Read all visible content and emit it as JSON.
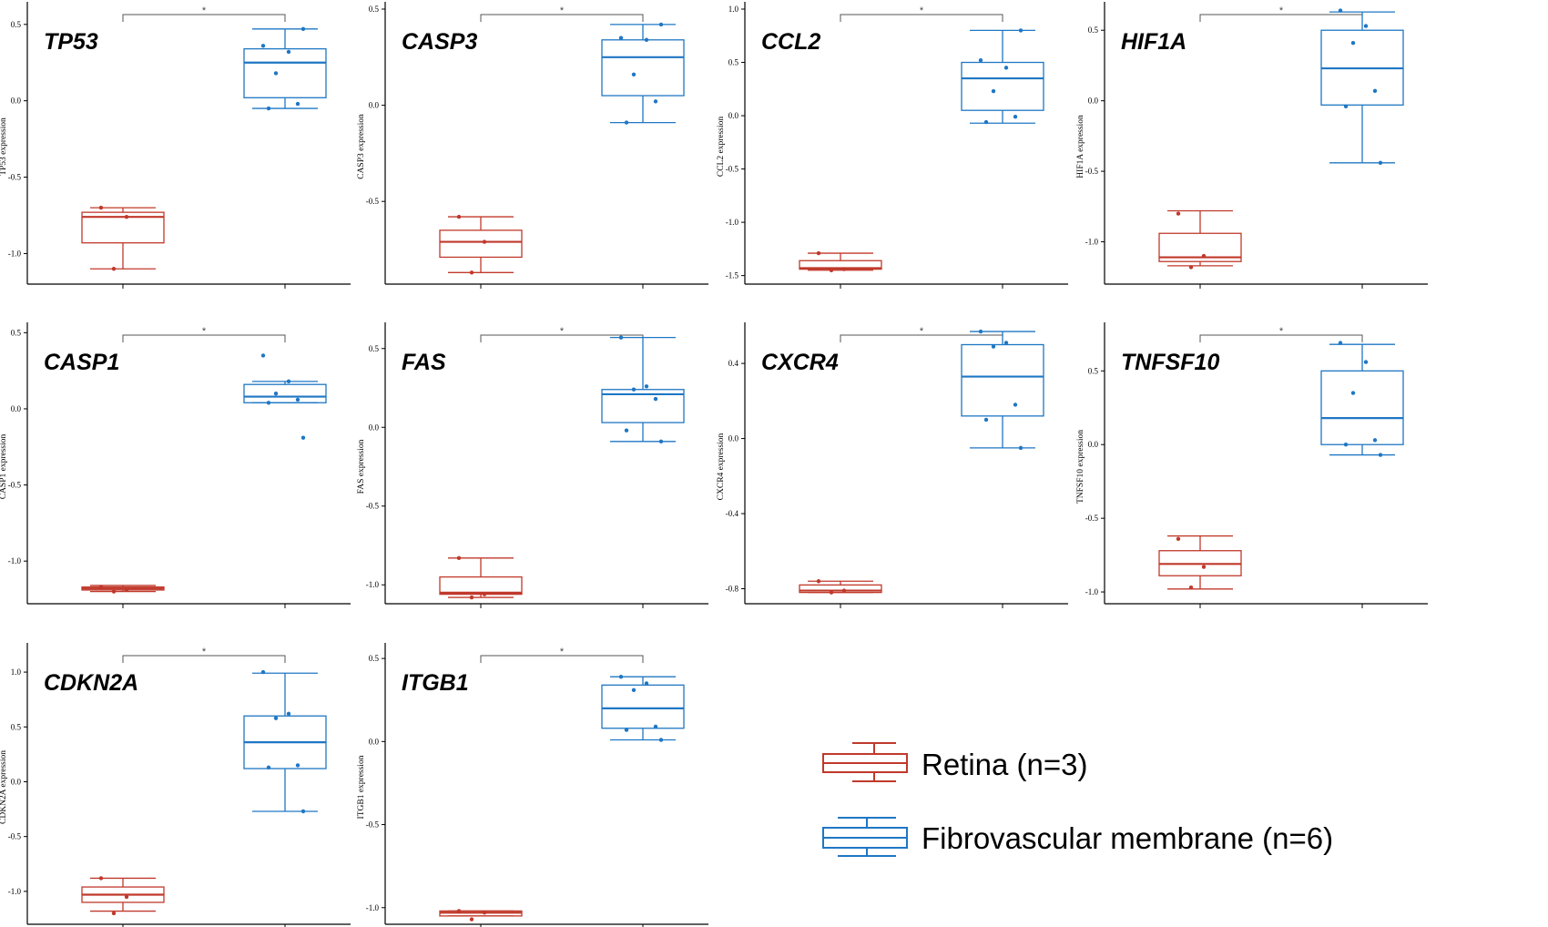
{
  "figure": {
    "title": ""
  },
  "colors": {
    "retina": "#C0392B",
    "fvm": "#1F77C4",
    "axis": "#000000",
    "bracket": "#555555"
  },
  "legend": [
    {
      "label": "Retina (n=3)",
      "series": "retina"
    },
    {
      "label": "Fibrovascular membrane (n=6)",
      "series": "fvm"
    }
  ],
  "chart_data": [
    {
      "type": "box",
      "title": "TP53",
      "ylabel": "TP53 expression",
      "ylim": [
        -1.2,
        0.6
      ],
      "yticks": [
        -1.0,
        -0.5,
        0.0,
        0.5
      ],
      "tick_labels": [
        "-1.0",
        "-0.5",
        "0.0",
        "0.5"
      ],
      "significance": "*",
      "series": [
        {
          "name": "Retina",
          "color_key": "retina",
          "whisker_low": -1.1,
          "q1": -0.93,
          "median": -0.76,
          "q3": -0.73,
          "whisker_high": -0.7,
          "points": [
            -0.7,
            -0.76,
            -1.1
          ]
        },
        {
          "name": "Fibrovascular membrane",
          "color_key": "fvm",
          "whisker_low": -0.05,
          "q1": 0.02,
          "median": 0.25,
          "q3": 0.34,
          "whisker_high": 0.47,
          "points": [
            0.36,
            0.32,
            0.18,
            -0.02,
            -0.05,
            0.47
          ]
        }
      ]
    },
    {
      "type": "box",
      "title": "CASP3",
      "ylabel": "CASP3 expression",
      "ylim": [
        -0.93,
        0.5
      ],
      "yticks": [
        -0.5,
        0.0,
        0.5
      ],
      "tick_labels": [
        "-0.5",
        "0.0",
        "0.5"
      ],
      "significance": "*",
      "series": [
        {
          "name": "Retina",
          "color_key": "retina",
          "whisker_low": -0.87,
          "q1": -0.79,
          "median": -0.71,
          "q3": -0.65,
          "whisker_high": -0.58,
          "points": [
            -0.58,
            -0.71,
            -0.87
          ]
        },
        {
          "name": "Fibrovascular membrane",
          "color_key": "fvm",
          "whisker_low": -0.09,
          "q1": 0.05,
          "median": 0.25,
          "q3": 0.34,
          "whisker_high": 0.42,
          "points": [
            0.35,
            0.34,
            0.16,
            0.02,
            -0.09,
            0.42
          ]
        }
      ]
    },
    {
      "type": "box",
      "title": "CCL2",
      "ylabel": "CCL2 expression",
      "ylim": [
        -1.58,
        1.0
      ],
      "yticks": [
        -1.5,
        -1.0,
        -0.5,
        0.0,
        0.5,
        1.0
      ],
      "tick_labels": [
        "-1.5",
        "-1.0",
        "-0.5",
        "0.0",
        "0.5",
        "1.0"
      ],
      "significance": "*",
      "series": [
        {
          "name": "Retina",
          "color_key": "retina",
          "whisker_low": -1.45,
          "q1": -1.44,
          "median": -1.43,
          "q3": -1.36,
          "whisker_high": -1.29,
          "points": [
            -1.29,
            -1.44,
            -1.45
          ]
        },
        {
          "name": "Fibrovascular membrane",
          "color_key": "fvm",
          "whisker_low": -0.07,
          "q1": 0.05,
          "median": 0.35,
          "q3": 0.5,
          "whisker_high": 0.8,
          "points": [
            0.52,
            0.45,
            0.23,
            -0.01,
            -0.06,
            0.8
          ]
        }
      ]
    },
    {
      "type": "box",
      "title": "HIF1A",
      "ylabel": "HIF1A expression",
      "ylim": [
        -1.3,
        0.65
      ],
      "yticks": [
        -1.0,
        -0.5,
        0.0,
        0.5
      ],
      "tick_labels": [
        "-1.0",
        "-0.5",
        "0.0",
        "0.5"
      ],
      "significance": "*",
      "series": [
        {
          "name": "Retina",
          "color_key": "retina",
          "whisker_low": -1.17,
          "q1": -1.14,
          "median": -1.11,
          "q3": -0.94,
          "whisker_high": -0.78,
          "points": [
            -0.8,
            -1.1,
            -1.18
          ]
        },
        {
          "name": "Fibrovascular membrane",
          "color_key": "fvm",
          "whisker_low": -0.44,
          "q1": -0.03,
          "median": 0.23,
          "q3": 0.5,
          "whisker_high": 0.63,
          "points": [
            0.64,
            0.53,
            0.41,
            0.07,
            -0.04,
            -0.44
          ]
        }
      ]
    },
    {
      "type": "box",
      "title": "CASP1",
      "ylabel": "CASP1 expression",
      "ylim": [
        -1.28,
        0.52
      ],
      "yticks": [
        -1.0,
        -0.5,
        0.0,
        0.5
      ],
      "tick_labels": [
        "-1.0",
        "-0.5",
        "0.0",
        "0.5"
      ],
      "significance": "*",
      "series": [
        {
          "name": "Retina",
          "color_key": "retina",
          "whisker_low": -1.2,
          "q1": -1.19,
          "median": -1.18,
          "q3": -1.17,
          "whisker_high": -1.16,
          "points": [
            -1.17,
            -1.19,
            -1.2
          ]
        },
        {
          "name": "Fibrovascular membrane",
          "color_key": "fvm",
          "whisker_low": 0.04,
          "q1": 0.04,
          "median": 0.08,
          "q3": 0.16,
          "whisker_high": 0.18,
          "points": [
            0.35,
            0.18,
            0.1,
            0.06,
            0.04,
            -0.19
          ]
        }
      ]
    },
    {
      "type": "box",
      "title": "FAS",
      "ylabel": "FAS expression",
      "ylim": [
        -1.12,
        0.62
      ],
      "yticks": [
        -1.0,
        -0.5,
        0.0,
        0.5
      ],
      "tick_labels": [
        "-1.0",
        "-0.5",
        "0.0",
        "0.5"
      ],
      "significance": "*",
      "series": [
        {
          "name": "Retina",
          "color_key": "retina",
          "whisker_low": -1.08,
          "q1": -1.06,
          "median": -1.05,
          "q3": -0.95,
          "whisker_high": -0.83,
          "points": [
            -0.83,
            -1.06,
            -1.08
          ]
        },
        {
          "name": "Fibrovascular membrane",
          "color_key": "fvm",
          "whisker_low": -0.09,
          "q1": 0.03,
          "median": 0.21,
          "q3": 0.24,
          "whisker_high": 0.57,
          "points": [
            0.57,
            0.26,
            0.24,
            0.18,
            -0.02,
            -0.09
          ]
        }
      ]
    },
    {
      "type": "box",
      "title": "CXCR4",
      "ylabel": "CXCR4 expression",
      "ylim": [
        -0.88,
        0.58
      ],
      "yticks": [
        -0.8,
        -0.4,
        0.0,
        0.4
      ],
      "tick_labels": [
        "-0.8",
        "-0.4",
        "0.0",
        "0.4"
      ],
      "significance": "*",
      "series": [
        {
          "name": "Retina",
          "color_key": "retina",
          "whisker_low": -0.82,
          "q1": -0.82,
          "median": -0.81,
          "q3": -0.78,
          "whisker_high": -0.76,
          "points": [
            -0.76,
            -0.81,
            -0.82
          ]
        },
        {
          "name": "Fibrovascular membrane",
          "color_key": "fvm",
          "whisker_low": -0.05,
          "q1": 0.12,
          "median": 0.33,
          "q3": 0.5,
          "whisker_high": 0.57,
          "points": [
            0.57,
            0.51,
            0.49,
            0.18,
            0.1,
            -0.05
          ]
        }
      ]
    },
    {
      "type": "box",
      "title": "TNFSF10",
      "ylabel": "TNFSF10 expression",
      "ylim": [
        -1.08,
        0.78
      ],
      "yticks": [
        -1.0,
        -0.5,
        0.0,
        0.5
      ],
      "tick_labels": [
        "-1.0",
        "-0.5",
        "0.0",
        "0.5"
      ],
      "significance": "*",
      "series": [
        {
          "name": "Retina",
          "color_key": "retina",
          "whisker_low": -0.98,
          "q1": -0.89,
          "median": -0.81,
          "q3": -0.72,
          "whisker_high": -0.62,
          "points": [
            -0.64,
            -0.83,
            -0.97
          ]
        },
        {
          "name": "Fibrovascular membrane",
          "color_key": "fvm",
          "whisker_low": -0.07,
          "q1": 0.0,
          "median": 0.18,
          "q3": 0.5,
          "whisker_high": 0.68,
          "points": [
            0.69,
            0.56,
            0.35,
            0.03,
            0.0,
            -0.07
          ]
        }
      ]
    },
    {
      "type": "box",
      "title": "CDKN2A",
      "ylabel": "CDKN2A expression",
      "ylim": [
        -1.3,
        1.2
      ],
      "yticks": [
        -1.0,
        -0.5,
        0.0,
        0.5,
        1.0
      ],
      "tick_labels": [
        "-1.0",
        "-0.5",
        "0.0",
        "0.5",
        "1.0"
      ],
      "significance": "*",
      "series": [
        {
          "name": "Retina",
          "color_key": "retina",
          "whisker_low": -1.18,
          "q1": -1.1,
          "median": -1.03,
          "q3": -0.96,
          "whisker_high": -0.88,
          "points": [
            -0.88,
            -1.05,
            -1.2
          ]
        },
        {
          "name": "Fibrovascular membrane",
          "color_key": "fvm",
          "whisker_low": -0.27,
          "q1": 0.12,
          "median": 0.36,
          "q3": 0.6,
          "whisker_high": 0.99,
          "points": [
            1.0,
            0.62,
            0.58,
            0.15,
            0.13,
            -0.27
          ]
        }
      ]
    },
    {
      "type": "box",
      "title": "ITGB1",
      "ylabel": "ITGB1 expression",
      "ylim": [
        -1.1,
        0.55
      ],
      "yticks": [
        -1.0,
        -0.5,
        0.0,
        0.5
      ],
      "tick_labels": [
        "-1.0",
        "-0.5",
        "0.0",
        "0.5"
      ],
      "significance": "*",
      "series": [
        {
          "name": "Retina",
          "color_key": "retina",
          "whisker_low": -1.05,
          "q1": -1.05,
          "median": -1.03,
          "q3": -1.02,
          "whisker_high": -1.02,
          "points": [
            -1.02,
            -1.03,
            -1.07
          ]
        },
        {
          "name": "Fibrovascular membrane",
          "color_key": "fvm",
          "whisker_low": 0.01,
          "q1": 0.08,
          "median": 0.2,
          "q3": 0.34,
          "whisker_high": 0.39,
          "points": [
            0.39,
            0.35,
            0.31,
            0.09,
            0.07,
            0.01
          ]
        }
      ]
    }
  ]
}
